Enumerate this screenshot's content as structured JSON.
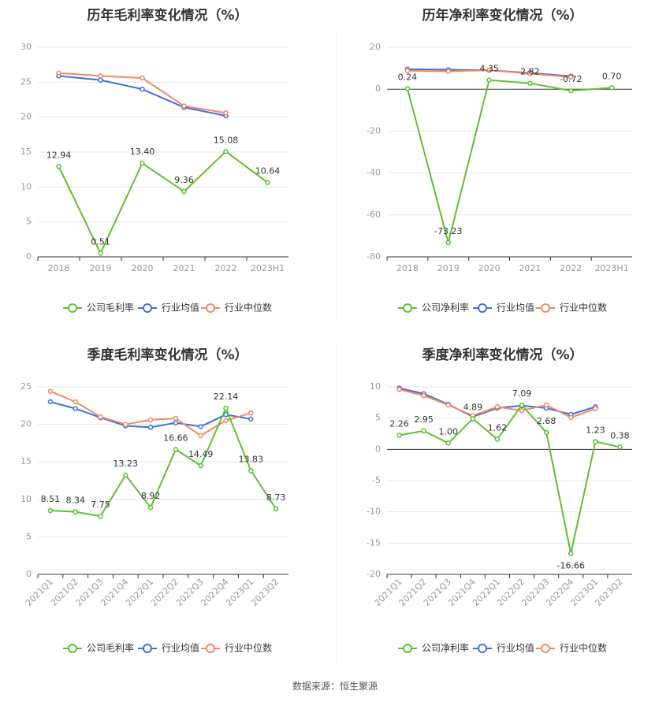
{
  "colors": {
    "company": "#5cc132",
    "avg": "#3f6fde",
    "median": "#ef8a62"
  },
  "source": "数据来源：恒生聚源",
  "chart_data": [
    {
      "type": "line",
      "title": "历年毛利率变化情况（%）",
      "categories": [
        "2018",
        "2019",
        "2020",
        "2021",
        "2022",
        "2023H1"
      ],
      "ylim": [
        0,
        30
      ],
      "yticks": [
        0,
        5,
        10,
        15,
        20,
        25,
        30
      ],
      "rotate_x": false,
      "grid": true,
      "legend_position": "bottom",
      "series": [
        {
          "name": "公司毛利率",
          "key": "company",
          "values": [
            12.94,
            0.51,
            13.4,
            9.36,
            15.08,
            10.64
          ],
          "labels": [
            "12.94",
            "0.51",
            "13.40",
            "9.36",
            "15.08",
            "10.64"
          ]
        },
        {
          "name": "行业均值",
          "key": "avg",
          "values": [
            25.9,
            25.3,
            24.0,
            21.4,
            20.2,
            null
          ]
        },
        {
          "name": "行业中位数",
          "key": "median",
          "values": [
            26.3,
            25.9,
            25.6,
            21.6,
            20.6,
            null
          ]
        }
      ]
    },
    {
      "type": "line",
      "title": "历年净利率变化情况（%）",
      "categories": [
        "2018",
        "2019",
        "2020",
        "2021",
        "2022",
        "2023H1"
      ],
      "ylim": [
        -80,
        20
      ],
      "yticks": [
        -80,
        -60,
        -40,
        -20,
        0,
        20
      ],
      "rotate_x": false,
      "grid": true,
      "legend_position": "bottom",
      "series": [
        {
          "name": "公司净利率",
          "key": "company",
          "values": [
            0.24,
            -73.23,
            4.35,
            2.82,
            -0.72,
            0.7
          ],
          "labels": [
            "0.24",
            "-73.23",
            "4.35",
            "2.82",
            "-0.72",
            "0.70"
          ]
        },
        {
          "name": "行业均值",
          "key": "avg",
          "values": [
            9.5,
            9.3,
            9.0,
            7.8,
            6.2,
            null
          ]
        },
        {
          "name": "行业中位数",
          "key": "median",
          "values": [
            8.8,
            8.5,
            9.1,
            7.4,
            5.8,
            null
          ]
        }
      ]
    },
    {
      "type": "line",
      "title": "季度毛利率变化情况（%）",
      "categories": [
        "2021Q1",
        "2021Q2",
        "2021Q3",
        "2021Q4",
        "2022Q1",
        "2022Q2",
        "2022Q3",
        "2022Q4",
        "2023Q1",
        "2023Q2"
      ],
      "ylim": [
        0,
        25
      ],
      "yticks": [
        0,
        5,
        10,
        15,
        20,
        25
      ],
      "rotate_x": true,
      "grid": true,
      "legend_position": "bottom",
      "series": [
        {
          "name": "公司毛利率",
          "key": "company",
          "values": [
            8.51,
            8.34,
            7.75,
            13.23,
            8.92,
            16.66,
            14.49,
            22.14,
            13.83,
            8.73
          ],
          "labels": [
            "8.51",
            "8.34",
            "7.75",
            "13.23",
            "8.92",
            "16.66",
            "14.49",
            "22.14",
            "13.83",
            "8.73"
          ]
        },
        {
          "name": "行业均值",
          "key": "avg",
          "values": [
            23.0,
            22.1,
            20.9,
            19.8,
            19.6,
            20.2,
            19.7,
            21.3,
            20.7,
            null
          ]
        },
        {
          "name": "行业中位数",
          "key": "median",
          "values": [
            24.4,
            23.0,
            21.0,
            20.0,
            20.6,
            20.8,
            18.5,
            20.5,
            21.5,
            null
          ]
        }
      ]
    },
    {
      "type": "line",
      "title": "季度净利率变化情况（%）",
      "categories": [
        "2021Q1",
        "2021Q2",
        "2021Q3",
        "2021Q4",
        "2022Q1",
        "2022Q2",
        "2022Q3",
        "2022Q4",
        "2023Q1",
        "2023Q2"
      ],
      "ylim": [
        -20,
        10
      ],
      "yticks": [
        -20,
        -15,
        -10,
        -5,
        0,
        5,
        10
      ],
      "rotate_x": true,
      "grid": true,
      "legend_position": "bottom",
      "series": [
        {
          "name": "公司净利率",
          "key": "company",
          "values": [
            2.26,
            2.95,
            1.0,
            4.89,
            1.62,
            7.09,
            2.68,
            -16.66,
            1.23,
            0.38
          ],
          "labels": [
            "2.26",
            "2.95",
            "1.00",
            "4.89",
            "1.62",
            "7.09",
            "2.68",
            "-16.66",
            "1.23",
            "0.38"
          ]
        },
        {
          "name": "行业均值",
          "key": "avg",
          "values": [
            9.8,
            8.9,
            7.2,
            5.2,
            6.6,
            7.0,
            6.6,
            5.6,
            6.8,
            null
          ]
        },
        {
          "name": "行业中位数",
          "key": "median",
          "values": [
            9.6,
            8.6,
            7.1,
            5.4,
            6.8,
            6.2,
            7.1,
            5.1,
            6.5,
            null
          ]
        }
      ]
    }
  ]
}
